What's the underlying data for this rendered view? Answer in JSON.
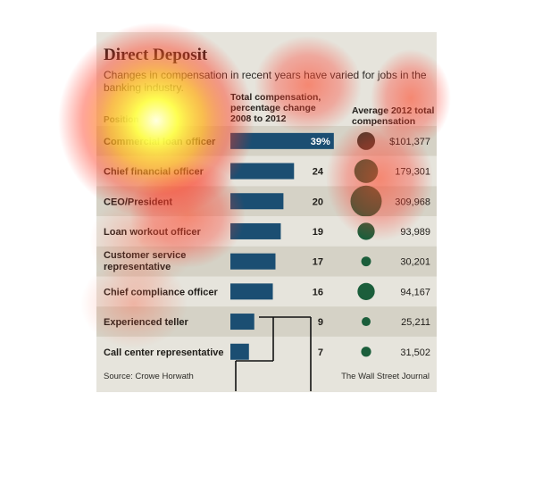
{
  "title": "Direct Deposit",
  "subtitle": "Changes in compensation in recent years have varied for jobs in the banking industry.",
  "headers": {
    "position": "Position",
    "change": "Total compensation, percentage change 2008 to 2012",
    "average": "Average 2012 total compensation"
  },
  "footer": {
    "source": "Source: Crowe Horwath",
    "credit": "The Wall Street Journal"
  },
  "colors": {
    "bar": "#1b4e72",
    "circle_first": "#3d3a2c",
    "circle": "#1b5e3b",
    "band_dark": "#d5d2c6",
    "band_light": "#e6e4dc"
  },
  "chart_data": [
    {
      "type": "bar",
      "categories": [
        "Commercial loan officer",
        "Chief financial officer",
        "CEO/President",
        "Loan workout officer",
        "Customer service representative",
        "Chief compliance officer",
        "Experienced teller",
        "Call center representative"
      ],
      "values": [
        39,
        24,
        20,
        19,
        17,
        16,
        9,
        7
      ],
      "value_labels": [
        "39%",
        "24",
        "20",
        "19",
        "17",
        "16",
        "9",
        "7"
      ],
      "title": "Total compensation, percentage change 2008 to 2012",
      "unit": "%"
    },
    {
      "type": "scatter",
      "categories": [
        "Commercial loan officer",
        "Chief financial officer",
        "CEO/President",
        "Loan workout officer",
        "Customer service representative",
        "Chief compliance officer",
        "Experienced teller",
        "Call center representative"
      ],
      "values": [
        101377,
        179301,
        309968,
        93989,
        30201,
        94167,
        25211,
        31502
      ],
      "value_labels": [
        "$101,377",
        "179,301",
        "309,968",
        "93,989",
        "30,201",
        "94,167",
        "25,211",
        "31,502"
      ],
      "title": "Average 2012 total compensation",
      "encoding": "circle area"
    }
  ]
}
